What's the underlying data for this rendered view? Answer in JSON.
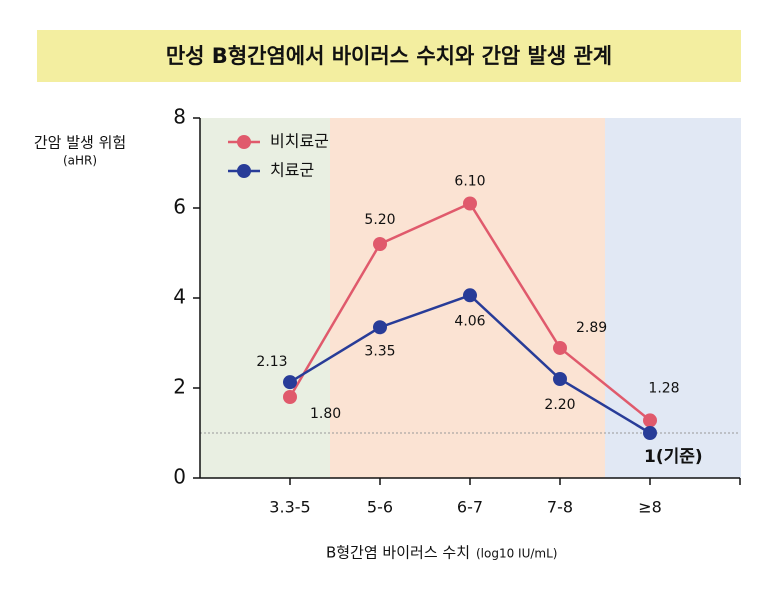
{
  "chart_data": {
    "type": "line",
    "title": "만성 B형간염에서 바이러스 수치와 간암 발생 관계",
    "y_label": "간암 발생 위험",
    "y_label_unit": "(aHR)",
    "x_label": "B형간염 바이러스 수치",
    "x_label_unit": "(log10 IU/mL)",
    "categories": [
      "3.3-5",
      "5-6",
      "6-7",
      "7-8",
      "≥8"
    ],
    "series": [
      {
        "name": "비치료군",
        "color": "#e05a6c",
        "values": [
          1.8,
          5.2,
          6.1,
          2.89,
          1.28
        ],
        "value_labels": [
          "1.80",
          "5.20",
          "6.10",
          "2.89",
          "1.28"
        ]
      },
      {
        "name": "치료군",
        "color": "#283c98",
        "values": [
          2.13,
          3.35,
          4.06,
          2.2,
          1
        ],
        "value_labels": [
          "2.13",
          "3.35",
          "4.06",
          "2.20",
          "1(기준)"
        ]
      }
    ],
    "ylim": [
      0,
      8
    ],
    "yticks": [
      0,
      2,
      4,
      6,
      8
    ],
    "reference_line": 1,
    "legend": "upper-left"
  }
}
